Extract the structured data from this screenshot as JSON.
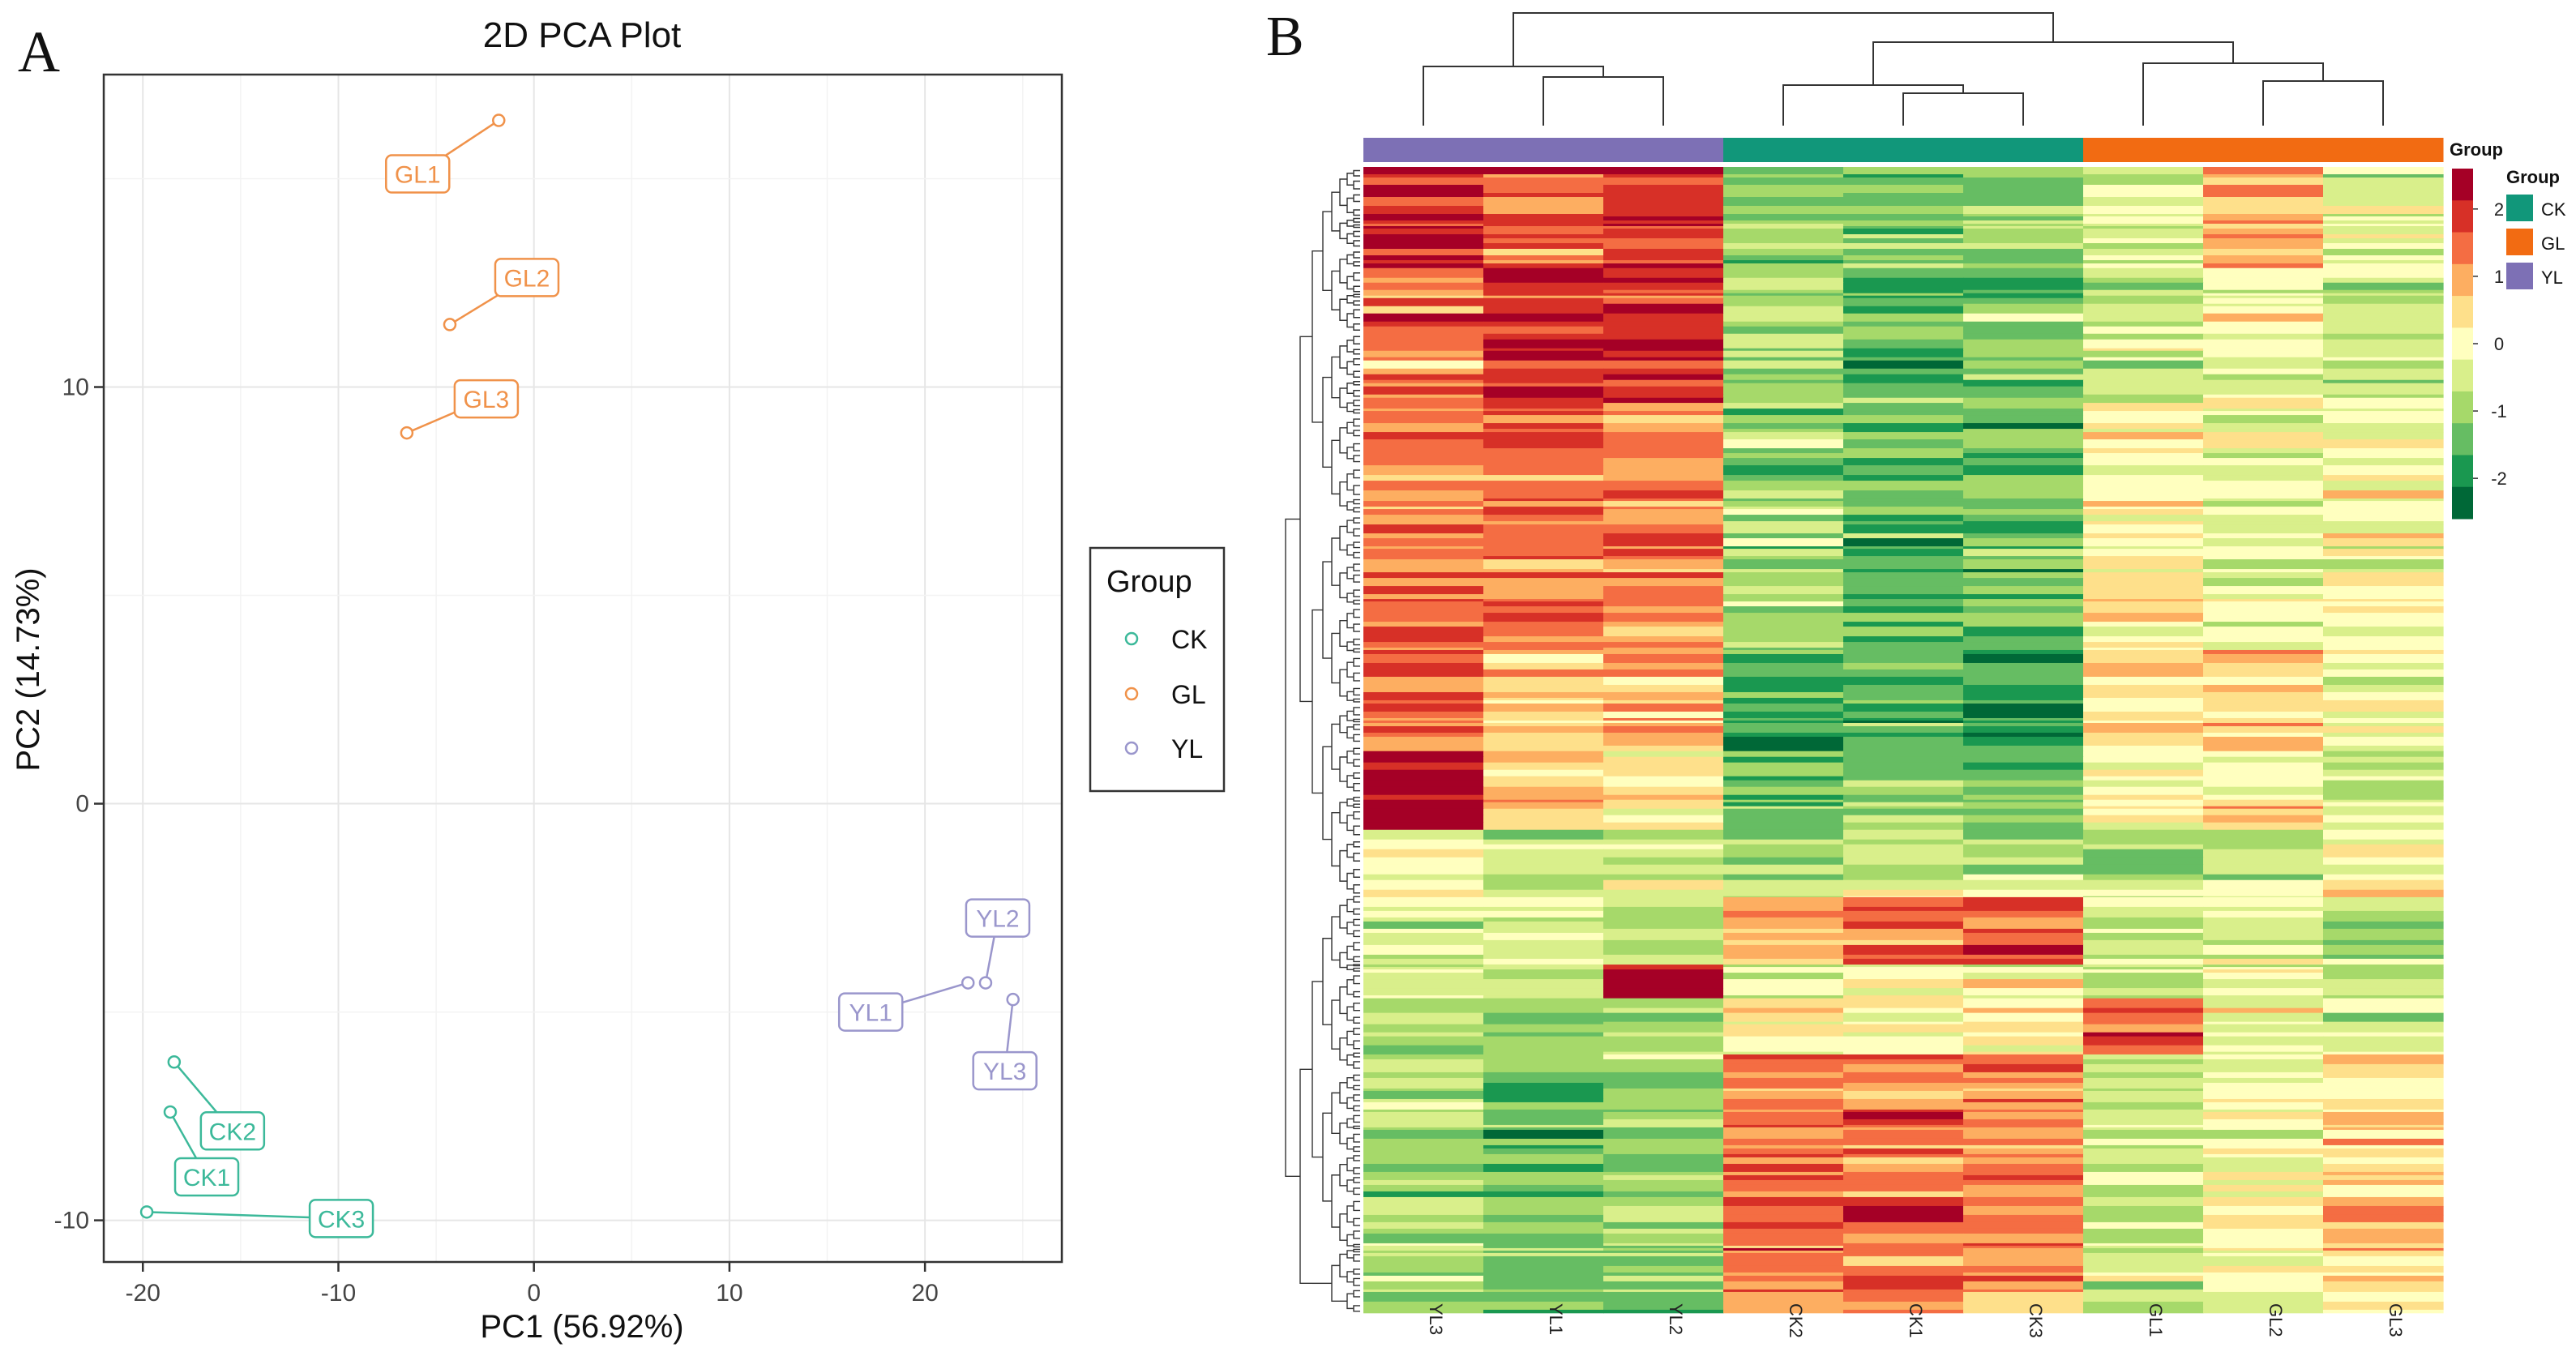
{
  "chart_data": [
    {
      "panel_label": "A",
      "type": "scatter",
      "title": "2D PCA Plot",
      "xlabel": "PC1 (56.92%)",
      "ylabel": "PC2 (14.73%)",
      "xlim": [
        -22,
        27
      ],
      "ylim": [
        -11,
        17.5
      ],
      "xticks": [
        -20,
        -10,
        0,
        10,
        20
      ],
      "yticks": [
        -10,
        0,
        10
      ],
      "xtick_labels": [
        "-20",
        "-10",
        "0",
        "10",
        "20"
      ],
      "ytick_labels": [
        "-10",
        "0",
        "10"
      ],
      "grid": true,
      "legend": {
        "title": "Group",
        "placement": "right",
        "entries": [
          {
            "label": "CK",
            "color": "#3cb99a"
          },
          {
            "label": "GL",
            "color": "#f0924a"
          },
          {
            "label": "YL",
            "color": "#9a96cc"
          }
        ]
      },
      "series": [
        {
          "name": "CK",
          "color": "#3cb99a",
          "points": [
            {
              "label": "CK1",
              "x": -18.6,
              "y": -7.4
            },
            {
              "label": "CK2",
              "x": -18.4,
              "y": -6.2
            },
            {
              "label": "CK3",
              "x": -19.8,
              "y": -9.8
            }
          ]
        },
        {
          "name": "GL",
          "color": "#f0924a",
          "points": [
            {
              "label": "GL1",
              "x": -1.8,
              "y": 16.4
            },
            {
              "label": "GL2",
              "x": -4.3,
              "y": 11.5
            },
            {
              "label": "GL3",
              "x": -6.5,
              "y": 8.9
            }
          ]
        },
        {
          "name": "YL",
          "color": "#9a96cc",
          "points": [
            {
              "label": "YL1",
              "x": 22.2,
              "y": -4.3
            },
            {
              "label": "YL2",
              "x": 23.1,
              "y": -4.3
            },
            {
              "label": "YL3",
              "x": 24.5,
              "y": -4.7
            }
          ]
        }
      ]
    },
    {
      "panel_label": "B",
      "type": "heatmap",
      "columns": [
        "YL3",
        "YL1",
        "YL2",
        "CK2",
        "CK1",
        "CK3",
        "GL1",
        "GL2",
        "GL3"
      ],
      "column_groups": [
        "YL",
        "YL",
        "YL",
        "CK",
        "CK",
        "CK",
        "GL",
        "GL",
        "GL"
      ],
      "group_colors": {
        "CK": "#11977a",
        "GL": "#f26b12",
        "YL": "#7d70b5"
      },
      "annotation_title": "Group",
      "group_legend": {
        "title": "Group",
        "entries": [
          {
            "label": "CK",
            "color": "#11977a"
          },
          {
            "label": "GL",
            "color": "#f26b12"
          },
          {
            "label": "YL",
            "color": "#7d70b5"
          }
        ]
      },
      "color_scale": {
        "min": -2.6,
        "max": 2.6,
        "ticks": [
          2,
          1,
          0,
          -1,
          -2
        ],
        "tick_labels": [
          "2",
          "1",
          "0",
          "-1",
          "-2"
        ],
        "colors": [
          "#006837",
          "#1a9850",
          "#66bd63",
          "#a6d96a",
          "#d9ef8b",
          "#ffffbf",
          "#fee08b",
          "#fdae61",
          "#f46d43",
          "#d73027",
          "#a50026"
        ]
      },
      "block_profiles": [
        {
          "fraction": 0.09,
          "means": [
            2.0,
            1.5,
            1.8,
            -1.1,
            -1.2,
            -1.0,
            -0.4,
            0.9,
            -0.3
          ]
        },
        {
          "fraction": 0.12,
          "means": [
            1.3,
            2.0,
            2.0,
            -0.9,
            -1.3,
            -1.2,
            -0.6,
            -0.1,
            -0.6
          ]
        },
        {
          "fraction": 0.22,
          "means": [
            1.2,
            1.3,
            1.1,
            -1.0,
            -1.5,
            -1.4,
            0.2,
            -0.3,
            -0.1
          ]
        },
        {
          "fraction": 0.09,
          "means": [
            1.4,
            0.6,
            0.8,
            -1.8,
            -1.5,
            -1.8,
            0.4,
            0.5,
            -0.2
          ]
        },
        {
          "fraction": 0.07,
          "means": [
            2.5,
            0.5,
            0.1,
            -1.2,
            -1.1,
            -1.3,
            0.0,
            0.3,
            -0.5
          ]
        },
        {
          "fraction": 0.06,
          "means": [
            0.0,
            -0.4,
            -0.3,
            -0.8,
            -0.6,
            -0.5,
            -0.7,
            -0.5,
            0.4
          ]
        },
        {
          "fraction": 0.06,
          "means": [
            -0.5,
            -0.4,
            -0.6,
            0.8,
            1.4,
            1.6,
            -0.6,
            -0.3,
            -0.6
          ]
        },
        {
          "fraction": 0.03,
          "means": [
            -0.6,
            -0.8,
            2.5,
            -0.3,
            -0.2,
            -0.1,
            -0.5,
            -0.2,
            -0.6
          ]
        },
        {
          "fraction": 0.05,
          "means": [
            -0.7,
            -0.9,
            -0.8,
            0.4,
            0.1,
            0.3,
            1.7,
            -0.1,
            -0.3
          ]
        },
        {
          "fraction": 0.23,
          "means": [
            -0.9,
            -1.2,
            -1.0,
            1.3,
            1.4,
            1.3,
            -0.5,
            0.0,
            0.6
          ]
        }
      ]
    }
  ]
}
